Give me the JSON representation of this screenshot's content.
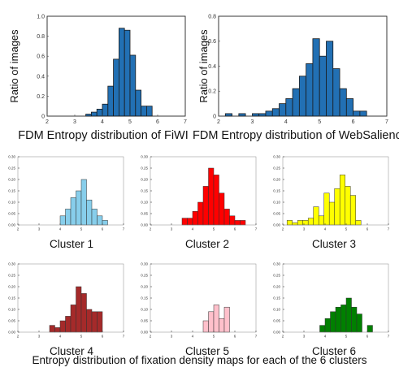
{
  "footer": "Entropy distribution of fixation density maps for each of the 6 clusters",
  "chart_data": [
    {
      "type": "bar",
      "caption": "FDM Entropy distribution of FiWI",
      "ylabel": "Ratio of images",
      "xlim": [
        2,
        7
      ],
      "ylim": [
        0,
        1.0
      ],
      "xticks": [
        "2",
        "3",
        "4",
        "5",
        "6",
        "7"
      ],
      "yticks": [
        "0",
        "0.2",
        "0.4",
        "0.6",
        "0.8",
        "1.0"
      ],
      "bin_width": 0.2,
      "bin_starts": [
        3.4,
        3.6,
        3.8,
        4.0,
        4.2,
        4.4,
        4.6,
        4.8,
        5.0,
        5.2,
        5.4,
        5.6
      ],
      "values": [
        0.02,
        0.04,
        0.07,
        0.12,
        0.3,
        0.57,
        0.88,
        0.86,
        0.61,
        0.26,
        0.1,
        0.1
      ],
      "color": "#2270b4"
    },
    {
      "type": "bar",
      "caption": "FDM Entropy distribution of WebSaliency",
      "ylabel": "Ratio of images",
      "xlim": [
        2,
        7
      ],
      "ylim": [
        0,
        0.8
      ],
      "xticks": [
        "2",
        "3",
        "4",
        "5",
        "6",
        "7"
      ],
      "yticks": [
        "0",
        "0.2",
        "0.4",
        "0.6",
        "0.8"
      ],
      "bin_width": 0.2,
      "bin_starts": [
        2.2,
        2.4,
        2.6,
        2.8,
        3.0,
        3.2,
        3.4,
        3.6,
        3.8,
        4.0,
        4.2,
        4.4,
        4.6,
        4.8,
        5.0,
        5.2,
        5.4,
        5.6,
        5.8,
        6.0,
        6.2
      ],
      "values": [
        0.02,
        0.0,
        0.02,
        0.0,
        0.02,
        0.02,
        0.04,
        0.06,
        0.1,
        0.14,
        0.22,
        0.32,
        0.42,
        0.62,
        0.48,
        0.6,
        0.38,
        0.22,
        0.14,
        0.04,
        0.04
      ],
      "color": "#2270b4"
    },
    {
      "type": "bar",
      "caption": "Cluster 1",
      "xlim": [
        2,
        7
      ],
      "ylim": [
        0,
        0.3
      ],
      "xticks": [
        "2",
        "3",
        "4",
        "5",
        "6",
        "7"
      ],
      "yticks": [
        "0.00",
        "0.05",
        "0.10",
        "0.15",
        "0.20",
        "0.25",
        "0.30"
      ],
      "bin_width": 0.25,
      "bin_starts": [
        4.0,
        4.25,
        4.5,
        4.75,
        5.0,
        5.25,
        5.5,
        5.75,
        6.0
      ],
      "values": [
        0.04,
        0.07,
        0.12,
        0.15,
        0.2,
        0.11,
        0.07,
        0.04,
        0.02
      ],
      "color": "#87ceeb"
    },
    {
      "type": "bar",
      "caption": "Cluster 2",
      "xlim": [
        2,
        7
      ],
      "ylim": [
        0,
        0.3
      ],
      "xticks": [
        "2",
        "3",
        "4",
        "5",
        "6",
        "7"
      ],
      "yticks": [
        "0.00",
        "0.05",
        "0.10",
        "0.15",
        "0.20",
        "0.25",
        "0.30"
      ],
      "bin_width": 0.25,
      "bin_starts": [
        3.5,
        3.75,
        4.0,
        4.25,
        4.5,
        4.75,
        5.0,
        5.25,
        5.5,
        5.75,
        6.0,
        6.25
      ],
      "values": [
        0.03,
        0.03,
        0.06,
        0.1,
        0.17,
        0.25,
        0.22,
        0.14,
        0.07,
        0.04,
        0.02,
        0.02
      ],
      "color": "#ff0000"
    },
    {
      "type": "bar",
      "caption": "Cluster 3",
      "xlim": [
        2,
        7
      ],
      "ylim": [
        0,
        0.3
      ],
      "xticks": [
        "2",
        "3",
        "4",
        "5",
        "6",
        "7"
      ],
      "yticks": [
        "0.00",
        "0.05",
        "0.10",
        "0.15",
        "0.20",
        "0.25",
        "0.30"
      ],
      "bin_width": 0.25,
      "bin_starts": [
        2.2,
        2.45,
        2.7,
        2.95,
        3.2,
        3.45,
        3.7,
        3.95,
        4.2,
        4.45,
        4.7,
        4.95,
        5.2,
        5.45
      ],
      "values": [
        0.02,
        0.01,
        0.02,
        0.02,
        0.03,
        0.08,
        0.04,
        0.14,
        0.1,
        0.16,
        0.22,
        0.17,
        0.13,
        0.02
      ],
      "color": "#ffff00"
    },
    {
      "type": "bar",
      "caption": "Cluster 4",
      "xlim": [
        2,
        7
      ],
      "ylim": [
        0,
        0.3
      ],
      "xticks": [
        "2",
        "3",
        "4",
        "5",
        "6",
        "7"
      ],
      "yticks": [
        "0.00",
        "0.05",
        "0.10",
        "0.15",
        "0.20",
        "0.25",
        "0.30"
      ],
      "bin_width": 0.25,
      "bin_starts": [
        3.5,
        3.75,
        4.0,
        4.25,
        4.5,
        4.75,
        5.0,
        5.25,
        5.5,
        5.75
      ],
      "values": [
        0.03,
        0.02,
        0.05,
        0.07,
        0.12,
        0.2,
        0.17,
        0.1,
        0.09,
        0.09
      ],
      "color": "#a52a2a"
    },
    {
      "type": "bar",
      "caption": "Cluster 5",
      "xlim": [
        2,
        7
      ],
      "ylim": [
        0,
        0.3
      ],
      "xticks": [
        "2",
        "3",
        "4",
        "5",
        "6",
        "7"
      ],
      "yticks": [
        "0.00",
        "0.05",
        "0.10",
        "0.15",
        "0.20",
        "0.25",
        "0.30"
      ],
      "bin_width": 0.25,
      "bin_starts": [
        4.5,
        4.75,
        5.0,
        5.25,
        5.5
      ],
      "values": [
        0.05,
        0.09,
        0.12,
        0.06,
        0.11
      ],
      "color": "#ffc0cb"
    },
    {
      "type": "bar",
      "caption": "Cluster 6",
      "xlim": [
        2,
        7
      ],
      "ylim": [
        0,
        0.3
      ],
      "xticks": [
        "2",
        "3",
        "4",
        "5",
        "6",
        "7"
      ],
      "yticks": [
        "0.00",
        "0.05",
        "0.10",
        "0.15",
        "0.20",
        "0.25",
        "0.30"
      ],
      "bin_width": 0.25,
      "bin_starts": [
        3.75,
        4.0,
        4.25,
        4.5,
        4.75,
        5.0,
        5.25,
        5.5,
        5.75,
        6.0
      ],
      "values": [
        0.03,
        0.06,
        0.09,
        0.11,
        0.12,
        0.15,
        0.11,
        0.08,
        0.0,
        0.03
      ],
      "color": "#008000"
    }
  ]
}
